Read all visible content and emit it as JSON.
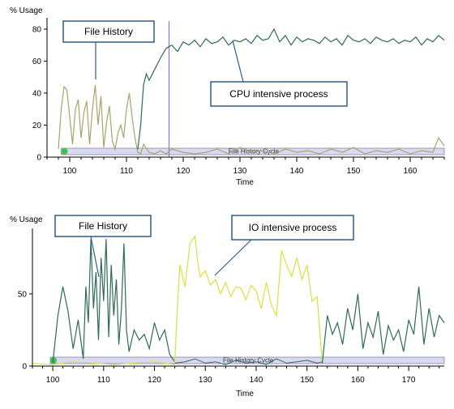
{
  "chart_data": [
    {
      "type": "line",
      "ylabel": "% Usage",
      "xlabel": "Time",
      "xlim": [
        96,
        166
      ],
      "ylim": [
        0,
        84
      ],
      "xticks": [
        100,
        110,
        120,
        130,
        140,
        150,
        160
      ],
      "yticks": [
        0,
        20,
        40,
        60,
        80
      ],
      "band_label": "File History Cycle",
      "band_start": 98.5,
      "marker_x": 117.5,
      "grid": false,
      "legend": "none",
      "callouts": [
        {
          "text": "File History"
        },
        {
          "text": "CPU intensive process"
        }
      ],
      "series": [
        {
          "color": "#a8a46a",
          "x": [
            98,
            98.5,
            99,
            99.5,
            100,
            100.5,
            101,
            101.5,
            102,
            102.5,
            103,
            103.5,
            104,
            104.5,
            105,
            105.5,
            106,
            106.5,
            107,
            107.5,
            108,
            108.5,
            109,
            109.5,
            110,
            110.5,
            111,
            111.5,
            112,
            112.5,
            113,
            114,
            115,
            116,
            117,
            118,
            120,
            122,
            124,
            126,
            128,
            130,
            132,
            134,
            136,
            138,
            140,
            142,
            144,
            146,
            148,
            150,
            152,
            154,
            156,
            158,
            160,
            162,
            164,
            165,
            166
          ],
          "y": [
            5,
            30,
            44,
            42,
            25,
            8,
            30,
            36,
            12,
            28,
            35,
            8,
            30,
            45,
            20,
            38,
            6,
            22,
            32,
            10,
            5,
            15,
            20,
            12,
            30,
            40,
            25,
            12,
            3,
            2,
            8,
            3,
            2,
            4,
            2,
            5,
            3,
            2,
            3,
            5,
            2,
            6,
            3,
            4,
            2,
            5,
            3,
            4,
            2,
            5,
            3,
            6,
            2,
            4,
            3,
            5,
            2,
            4,
            3,
            12,
            7
          ]
        },
        {
          "color": "#2e6b55",
          "x": [
            112,
            112.5,
            113,
            113.5,
            114,
            115,
            116,
            117,
            118,
            119,
            120,
            121,
            122,
            123,
            124,
            125,
            126,
            127,
            128,
            129,
            130,
            131,
            132,
            133,
            134,
            135,
            136,
            137,
            138,
            139,
            140,
            141,
            142,
            143,
            144,
            145,
            146,
            147,
            148,
            149,
            150,
            151,
            152,
            153,
            154,
            155,
            156,
            157,
            158,
            159,
            160,
            161,
            162,
            163,
            164,
            165,
            166
          ],
          "y": [
            5,
            20,
            45,
            52,
            48,
            55,
            62,
            68,
            70,
            66,
            72,
            70,
            73,
            69,
            74,
            71,
            72,
            75,
            70,
            73,
            72,
            74,
            71,
            76,
            73,
            74,
            80,
            72,
            76,
            70,
            75,
            72,
            74,
            73,
            71,
            75,
            72,
            74,
            70,
            76,
            73,
            72,
            74,
            71,
            75,
            73,
            72,
            74,
            71,
            73,
            72,
            75,
            70,
            74,
            72,
            76,
            73
          ]
        }
      ]
    },
    {
      "type": "line",
      "ylabel": "% Usage",
      "xlabel": "Time",
      "xlim": [
        96,
        177
      ],
      "ylim": [
        0,
        92
      ],
      "xticks": [
        100,
        110,
        120,
        130,
        140,
        150,
        160,
        170
      ],
      "yticks": [
        0,
        50
      ],
      "band_label": "File History Cycle",
      "band_start": 99.5,
      "grid": false,
      "legend": "none",
      "callouts": [
        {
          "text": "File History"
        },
        {
          "text": "IO intensive process"
        }
      ],
      "series": [
        {
          "color": "#2e6b55",
          "x": [
            100,
            101,
            102,
            103,
            104,
            105,
            106,
            106.5,
            107,
            107.5,
            108,
            108.5,
            109,
            109.5,
            110,
            110.5,
            111,
            111.5,
            112,
            112.5,
            113,
            113.5,
            114,
            114.5,
            115,
            116,
            117,
            118,
            119,
            120,
            121,
            122,
            123,
            124
          ],
          "y": [
            2,
            35,
            55,
            38,
            12,
            32,
            5,
            55,
            30,
            88,
            40,
            65,
            18,
            75,
            45,
            88,
            20,
            70,
            35,
            60,
            15,
            40,
            85,
            25,
            10,
            25,
            18,
            22,
            12,
            30,
            18,
            25,
            8,
            3
          ],
          "x2": [
            124,
            126,
            128,
            130,
            132,
            134,
            136,
            138,
            140,
            142,
            144,
            146,
            148,
            150,
            152,
            153
          ],
          "y2": [
            2,
            3,
            5,
            2,
            3,
            1,
            4,
            2,
            3,
            1,
            5,
            2,
            3,
            4,
            2,
            3
          ]
        },
        {
          "color": "#d8e23c",
          "x": [
            124,
            124.5,
            125,
            126,
            127,
            128,
            128.5,
            129,
            130,
            131,
            132,
            133,
            134,
            135,
            136,
            137,
            138,
            139,
            140,
            141,
            142,
            143,
            144,
            145,
            146,
            147,
            148,
            149,
            150,
            151,
            152,
            153
          ],
          "y": [
            3,
            40,
            70,
            55,
            85,
            90,
            72,
            62,
            66,
            56,
            60,
            50,
            58,
            48,
            55,
            54,
            46,
            56,
            52,
            40,
            58,
            42,
            35,
            80,
            70,
            62,
            75,
            60,
            70,
            45,
            48,
            2
          ],
          "x2": [
            96,
            100,
            104,
            108,
            112,
            116,
            120,
            124
          ],
          "y2": [
            2,
            1,
            3,
            2,
            1,
            2,
            3,
            1
          ]
        },
        {
          "color": "#2e6b55",
          "x": [
            153,
            154,
            155,
            156,
            157,
            158,
            159,
            160,
            161,
            162,
            163,
            164,
            165,
            166,
            167,
            168,
            169,
            170,
            171,
            172,
            173,
            174,
            175,
            176,
            177
          ],
          "y": [
            2,
            35,
            22,
            30,
            15,
            40,
            25,
            50,
            12,
            30,
            20,
            38,
            8,
            28,
            18,
            25,
            10,
            32,
            22,
            55,
            15,
            40,
            20,
            35,
            30
          ]
        }
      ]
    }
  ]
}
